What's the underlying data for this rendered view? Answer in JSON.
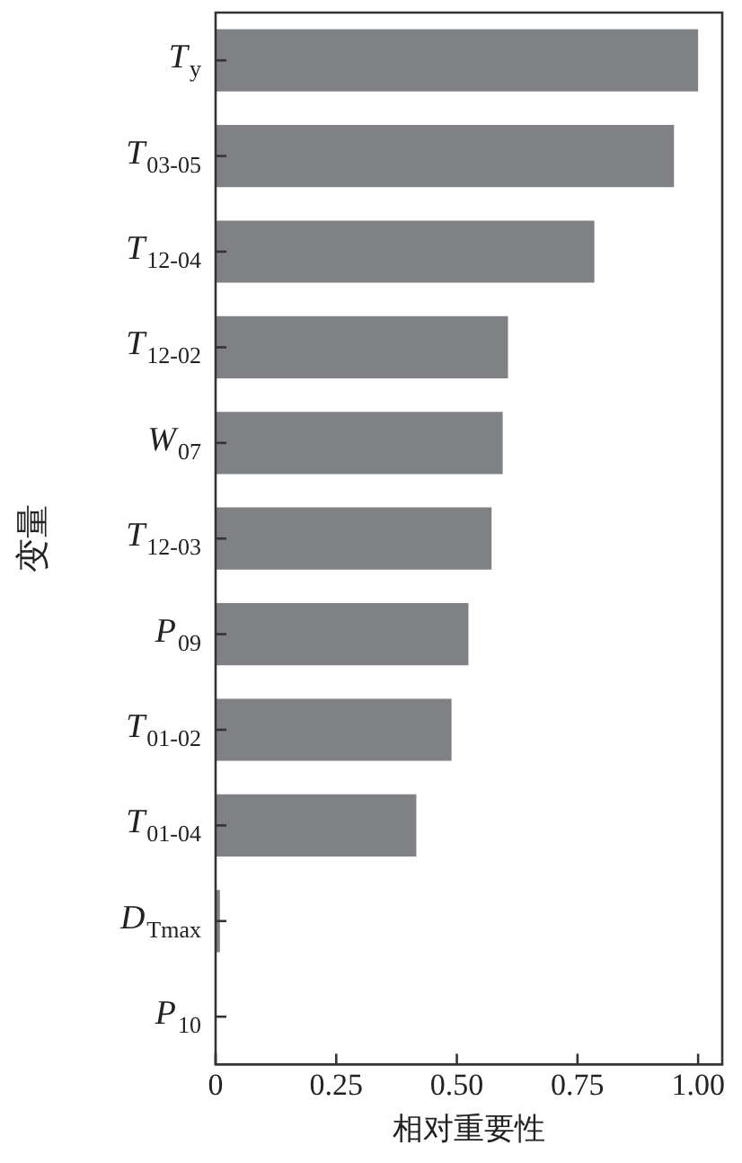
{
  "chart_data": {
    "type": "bar",
    "orientation": "horizontal",
    "xlabel": "相对重要性",
    "ylabel": "变量",
    "categories": [
      "T$_{y}$",
      "T$_{03-05}$",
      "T$_{12-04}$",
      "T$_{12-02}$",
      "W$_{07}$",
      "T$_{12-03}$",
      "P$_{09}$",
      "T$_{01-02}$",
      "T$_{01-04}$",
      "D$_{Tmax}$",
      "P$_{10}$"
    ],
    "values": [
      1.0,
      0.95,
      0.785,
      0.606,
      0.595,
      0.572,
      0.524,
      0.489,
      0.416,
      0.009,
      0
    ],
    "color": "#808184",
    "xlim": [
      0,
      1.05
    ],
    "xticks": [
      {
        "value": 0,
        "label": "0"
      },
      0.25,
      {
        "value": 0.5,
        "label": "0.50"
      },
      0.75,
      {
        "value": 1,
        "label": "1.00"
      }
    ],
    "grid": false,
    "legend": false
  }
}
